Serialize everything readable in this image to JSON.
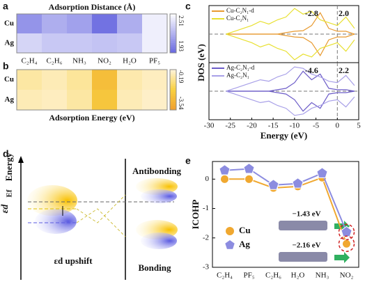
{
  "panel_labels": [
    "a",
    "b",
    "c",
    "d",
    "e"
  ],
  "chart_data": [
    {
      "type": "heatmap",
      "title": "Adsorption Distance (Å)",
      "rows": [
        "Cu",
        "Ag"
      ],
      "categories": [
        "C₂H₄",
        "C₂H₆",
        "NH₃",
        "NO₂",
        "H₂O",
        "PF₅"
      ],
      "values": [
        [
          2.1,
          2.2,
          2.15,
          1.97,
          2.2,
          2.45
        ],
        [
          2.35,
          2.3,
          2.3,
          2.28,
          2.3,
          2.45
        ]
      ],
      "zlim": [
        1.93,
        2.51
      ],
      "colorbar_ticks": [
        2.51,
        1.93
      ],
      "colormap": [
        "#6868e0",
        "#ffffff"
      ]
    },
    {
      "type": "heatmap",
      "title": "Adsorption Energy (eV)",
      "rows": [
        "Cu",
        "Ag"
      ],
      "values": [
        [
          -0.8,
          -0.6,
          -0.9,
          -2.5,
          -0.7,
          -0.5
        ],
        [
          -0.6,
          -0.5,
          -0.8,
          -2.2,
          -0.6,
          -0.4
        ]
      ],
      "zlim": [
        -3.54,
        -0.19
      ],
      "colorbar_ticks": [
        -0.19,
        -3.54
      ],
      "colormap": [
        "#f0a030",
        "#f8d040",
        "#fff4dc"
      ]
    },
    {
      "type": "dos",
      "ylabel": "DOS (eV)",
      "xlim": [
        -30,
        5
      ],
      "ylim": [
        -1,
        1
      ],
      "x": [
        -26,
        -24,
        -22,
        -20,
        -18,
        -16,
        -14,
        -12,
        -10,
        -8,
        -6,
        -4,
        -2,
        0,
        2,
        4
      ],
      "series": [
        {
          "name": "Cu-C₂N₁-d",
          "color": "#e89a30",
          "values": [
            0,
            0,
            0,
            0,
            0,
            0,
            0,
            0.05,
            0.1,
            0.12,
            0.3,
            0.75,
            0.2,
            0.1,
            0.1,
            0
          ],
          "values_spin_down": [
            0,
            0,
            0,
            0,
            0,
            0,
            0,
            -0.05,
            -0.1,
            -0.12,
            -0.3,
            -0.75,
            -0.2,
            -0.1,
            -0.1,
            0
          ]
        },
        {
          "name": "Cu-C₂N₁",
          "color": "#e8e030",
          "values": [
            0,
            0.1,
            0.2,
            0.3,
            0.45,
            0.35,
            0.5,
            0.6,
            0.9,
            0.7,
            0.8,
            0.5,
            0.4,
            0.3,
            0.6,
            0.2
          ],
          "values_spin_down": [
            0,
            -0.1,
            -0.2,
            -0.3,
            -0.45,
            -0.35,
            -0.5,
            -0.6,
            -0.9,
            -0.7,
            -0.8,
            -0.5,
            -0.4,
            -0.3,
            -0.6,
            -0.2
          ]
        }
      ],
      "annotations": [
        {
          "text": "-2.8",
          "color": "#e89a30"
        },
        {
          "text": "2.0",
          "color": "#d8a020"
        }
      ]
    },
    {
      "type": "dos",
      "xlabel": "Energy (eV)",
      "xlim": [
        -30,
        5
      ],
      "ylim": [
        -1,
        1
      ],
      "xticks": [
        -30,
        -25,
        -20,
        -15,
        -10,
        -5,
        0,
        5
      ],
      "x": [
        -26,
        -24,
        -22,
        -20,
        -18,
        -16,
        -14,
        -12,
        -10,
        -8,
        -6,
        -4,
        -2,
        0,
        2,
        4
      ],
      "series": [
        {
          "name": "Ag-C₂N₁-d",
          "color": "#6c5cc8",
          "values": [
            0,
            0,
            0,
            0,
            0,
            0,
            0.05,
            0.1,
            0.3,
            0.7,
            0.4,
            0.6,
            0.1,
            0.05,
            0.05,
            0
          ],
          "values_spin_down": [
            0,
            0,
            0,
            0,
            0,
            0,
            -0.05,
            -0.1,
            -0.3,
            -0.7,
            -0.4,
            -0.6,
            -0.1,
            -0.05,
            -0.05,
            0
          ]
        },
        {
          "name": "Ag-C₂N₁",
          "color": "#a8a0e8",
          "values": [
            0,
            0.1,
            0.2,
            0.3,
            0.4,
            0.35,
            0.5,
            0.6,
            0.85,
            0.8,
            0.6,
            0.5,
            0.35,
            0.3,
            0.55,
            0.2
          ],
          "values_spin_down": [
            0,
            -0.1,
            -0.2,
            -0.3,
            -0.4,
            -0.35,
            -0.5,
            -0.6,
            -0.85,
            -0.8,
            -0.6,
            -0.5,
            -0.35,
            -0.3,
            -0.55,
            -0.2
          ]
        }
      ],
      "annotations": [
        {
          "text": "-4.6",
          "color": "#8a1a5a"
        },
        {
          "text": "2.2",
          "color": "#8a1a5a"
        }
      ]
    },
    {
      "type": "line",
      "ylabel": "ICOHP",
      "categories": [
        "C₂H₄",
        "PF₅",
        "C₂H₆",
        "H₂O",
        "NH₃",
        "NO₂"
      ],
      "ylim": [
        -3,
        0.6
      ],
      "yticks": [
        -3,
        -2,
        -1,
        0
      ],
      "series": [
        {
          "name": "Cu",
          "color": "#f0a830",
          "marker": "circle",
          "values": [
            0,
            0,
            -0.3,
            -0.25,
            0.05,
            -2.2
          ]
        },
        {
          "name": "Ag",
          "color": "#8c8ce0",
          "marker": "pentagon",
          "values": [
            0.3,
            0.35,
            -0.2,
            -0.15,
            0.2,
            -1.8
          ]
        }
      ],
      "annotations": [
        "−1.43 eV",
        "−2.16 eV"
      ]
    }
  ],
  "diagram": {
    "energy": "Energy",
    "ed": "εd",
    "ef": "Ef",
    "antibonding": "Antibonding",
    "bonding": "Bonding",
    "upshift": "εd upshift"
  }
}
